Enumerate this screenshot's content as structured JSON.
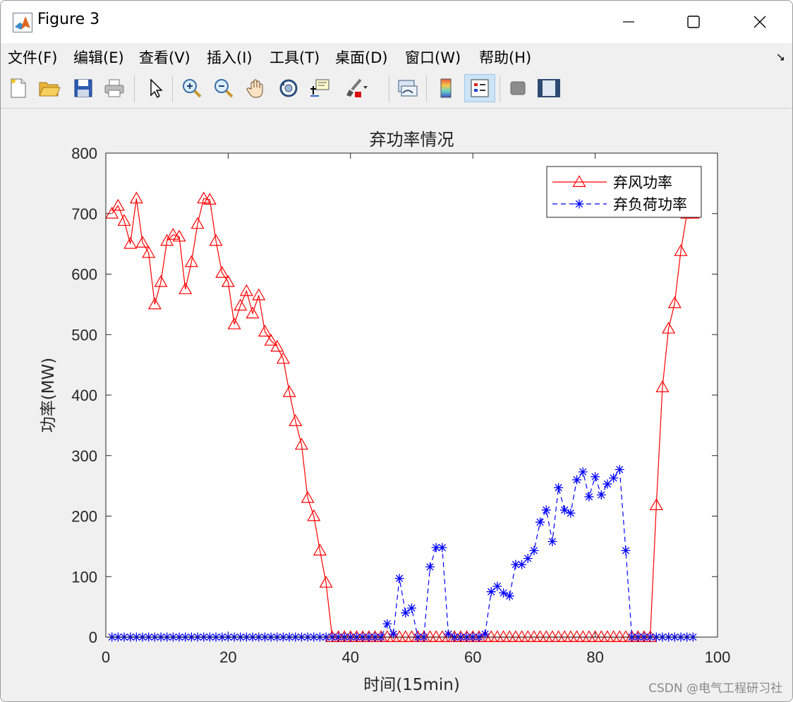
{
  "window": {
    "title": "Figure 3",
    "controls": [
      "minimize",
      "maximize",
      "close"
    ]
  },
  "menu": [
    "文件(F)",
    "编辑(E)",
    "查看(V)",
    "插入(I)",
    "工具(T)",
    "桌面(D)",
    "窗口(W)",
    "帮助(H)"
  ],
  "toolbar": {
    "icons": [
      "new-figure-icon",
      "open-file-icon",
      "save-icon",
      "print-icon",
      "select-arrow-icon",
      "zoom-in-icon",
      "zoom-out-icon",
      "pan-hand-icon",
      "rotate-3d-icon",
      "data-cursor-icon",
      "brush-icon",
      "link-plot-icon",
      "colorbar-icon",
      "legend-icon",
      "hide-plot-tools-icon",
      "show-plot-tools-icon"
    ]
  },
  "watermark": "CSDN @电气工程研习社",
  "chart_data": {
    "type": "line",
    "title": "弃功率情况",
    "xlabel": "时间(15min)",
    "ylabel": "功率(MW)",
    "xlim": [
      0,
      100
    ],
    "ylim": [
      0,
      800
    ],
    "xticks": [
      0,
      20,
      40,
      60,
      80,
      100
    ],
    "yticks": [
      0,
      100,
      200,
      300,
      400,
      500,
      600,
      700,
      800
    ],
    "grid": false,
    "legend_position": "top-right",
    "x": [
      1,
      2,
      3,
      4,
      5,
      6,
      7,
      8,
      9,
      10,
      11,
      12,
      13,
      14,
      15,
      16,
      17,
      18,
      19,
      20,
      21,
      22,
      23,
      24,
      25,
      26,
      27,
      28,
      29,
      30,
      31,
      32,
      33,
      34,
      35,
      36,
      37,
      38,
      39,
      40,
      41,
      42,
      43,
      44,
      45,
      46,
      47,
      48,
      49,
      50,
      51,
      52,
      53,
      54,
      55,
      56,
      57,
      58,
      59,
      60,
      61,
      62,
      63,
      64,
      65,
      66,
      67,
      68,
      69,
      70,
      71,
      72,
      73,
      74,
      75,
      76,
      77,
      78,
      79,
      80,
      81,
      82,
      83,
      84,
      85,
      86,
      87,
      88,
      89,
      90,
      91,
      92,
      93,
      94,
      95,
      96
    ],
    "series": [
      {
        "name": "弃风功率",
        "color": "#ff0000",
        "line": "solid",
        "marker": "triangle",
        "values": [
          700,
          713,
          688,
          650,
          725,
          652,
          635,
          550,
          587,
          655,
          665,
          662,
          575,
          620,
          683,
          725,
          723,
          655,
          602,
          587,
          517,
          548,
          572,
          535,
          565,
          505,
          490,
          480,
          460,
          405,
          357,
          318,
          230,
          200,
          143,
          90,
          0,
          0,
          0,
          0,
          0,
          0,
          0,
          0,
          0,
          0,
          0,
          0,
          0,
          0,
          0,
          0,
          0,
          0,
          0,
          0,
          0,
          0,
          0,
          0,
          0,
          0,
          0,
          0,
          0,
          0,
          0,
          0,
          0,
          0,
          0,
          0,
          0,
          0,
          0,
          0,
          0,
          0,
          0,
          0,
          0,
          0,
          0,
          0,
          0,
          0,
          0,
          0,
          0,
          218,
          413,
          510,
          552,
          638,
          700,
          700
        ]
      },
      {
        "name": "弃负荷功率",
        "color": "#0000ff",
        "line": "dashed",
        "marker": "asterisk",
        "values": [
          0,
          0,
          0,
          0,
          0,
          0,
          0,
          0,
          0,
          0,
          0,
          0,
          0,
          0,
          0,
          0,
          0,
          0,
          0,
          0,
          0,
          0,
          0,
          0,
          0,
          0,
          0,
          0,
          0,
          0,
          0,
          0,
          0,
          0,
          0,
          0,
          0,
          0,
          0,
          0,
          0,
          0,
          0,
          0,
          0,
          22,
          5,
          97,
          40,
          48,
          0,
          0,
          116,
          148,
          148,
          5,
          0,
          0,
          0,
          0,
          0,
          5,
          75,
          84,
          73,
          68,
          120,
          120,
          130,
          143,
          190,
          210,
          158,
          247,
          210,
          205,
          260,
          273,
          232,
          265,
          235,
          253,
          263,
          277,
          143,
          0,
          0,
          0,
          0,
          0,
          0,
          0,
          0,
          0,
          0,
          0
        ]
      }
    ]
  }
}
